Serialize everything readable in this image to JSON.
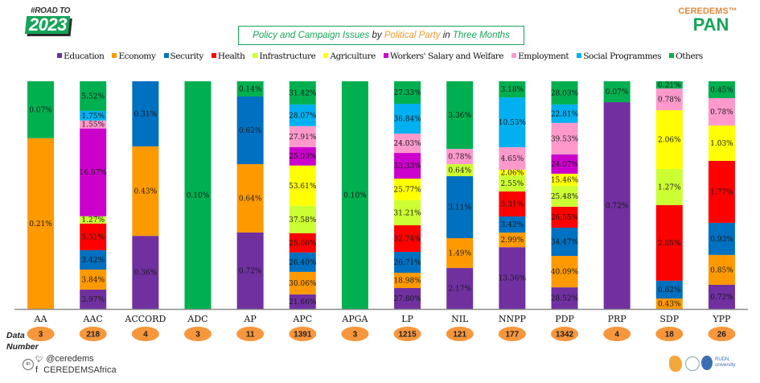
{
  "header": {
    "logo_left_tag": "#ROAD TO",
    "logo_left_year": "2023",
    "logo_right_brand": "CEREDEMS™",
    "logo_right_product": "PAN",
    "title_parts": [
      {
        "text": "Policy and Campaign Issues",
        "style": "green"
      },
      {
        "text": " by ",
        "style": "black"
      },
      {
        "text": "Political Party",
        "style": "orange"
      },
      {
        "text": " in ",
        "style": "black"
      },
      {
        "text": "Three  Months",
        "style": "green"
      }
    ]
  },
  "footer": {
    "data_number_label_line1": "Data",
    "data_number_label_line2": "Number",
    "twitter": "@ceredems",
    "facebook": "CEREDEMSAfrica",
    "linkedin_icon": "in",
    "twitter_icon": "♥",
    "facebook_icon": "f",
    "partner_text": "RUDN university"
  },
  "chart_data": {
    "type": "bar",
    "stacked": "100%",
    "title": "Policy and Campaign Issues by Political Party in Three Months",
    "xlabel": "",
    "ylabel": "",
    "ylim": [
      0,
      100
    ],
    "grid": false,
    "legend_position": "top",
    "categories": [
      "AA",
      "AAC",
      "ACCORD",
      "ADC",
      "AP",
      "APC",
      "APGA",
      "LP",
      "NIL",
      "NNPP",
      "PDP",
      "PRP",
      "SDP",
      "YPP"
    ],
    "data_numbers": [
      3,
      218,
      4,
      3,
      11,
      1391,
      3,
      1215,
      121,
      177,
      1342,
      4,
      18,
      26
    ],
    "colors": {
      "Education": "#7030a0",
      "Economy": "#ff9900",
      "Security": "#0070c0",
      "Health": "#ff0000",
      "Infrastructure": "#ccff33",
      "Agriculture": "#ffff00",
      "Workers' Salary and Welfare": "#cc00cc",
      "Employment": "#ff99cc",
      "Social Programmes": "#00b0f0",
      "Others": "#00b050"
    },
    "count_bubble_color": "#f7963b",
    "legend": [
      "Education",
      "Economy",
      "Security",
      "Health",
      "Infrastructure",
      "Agriculture",
      "Workers' Salary and Welfare",
      "Employment",
      "Social Programmes",
      "Others"
    ],
    "note": "share = within-party share (%) shown by segment height; label = printed data label (%)",
    "series": [
      {
        "name": "Education",
        "share": [
          0,
          8.5,
          32.1,
          0,
          33.6,
          6.4,
          0,
          9.2,
          18.0,
          27.2,
          9.5,
          90.8,
          0,
          10.6
        ],
        "labels": [
          null,
          "3.97%",
          "0.36%",
          null,
          "0.72%",
          "21.66%",
          null,
          "27.80%",
          "2.17%",
          "13.36%",
          "28.52%",
          "0.72%",
          null,
          "0.72%"
        ]
      },
      {
        "name": "Economy",
        "share": [
          75.0,
          8.8,
          39.3,
          0,
          30.0,
          9.9,
          0,
          6.7,
          13.1,
          6.4,
          13.8,
          0,
          4.6,
          13.1
        ],
        "labels": [
          "0.21%",
          "3.84%",
          "0.43%",
          null,
          "0.64%",
          "30.06%",
          null,
          "18.98%",
          "1.49%",
          "2.99%",
          "40.09%",
          null,
          "0.43%",
          "0.85%"
        ]
      },
      {
        "name": "Security",
        "share": [
          0,
          8.5,
          28.6,
          0,
          29.7,
          8.5,
          0,
          9.2,
          27.2,
          7.1,
          12.4,
          0,
          7.8,
          14.1
        ],
        "labels": [
          null,
          "3.42%",
          "0.31%",
          null,
          "0.62%",
          "26.40%",
          null,
          "26.71%",
          "3.11%",
          "3.42%",
          "34.47%",
          null,
          "0.62%",
          "0.93%"
        ]
      },
      {
        "name": "Health",
        "share": [
          0,
          11.7,
          0,
          0,
          0,
          8.5,
          0,
          11.7,
          0,
          11.0,
          9.2,
          0,
          33.2,
          27.2
        ],
        "labels": [
          null,
          "5.31%",
          null,
          null,
          null,
          "25.66%",
          null,
          "32.74%",
          null,
          "5.31%",
          "26.55%",
          null,
          "2.65%",
          "1.77%"
        ]
      },
      {
        "name": "Infrastructure",
        "share": [
          0,
          3.2,
          0,
          0,
          0,
          12.0,
          0,
          11.0,
          5.3,
          7.1,
          9.2,
          0,
          15.9,
          0
        ],
        "labels": [
          null,
          "1.27%",
          null,
          null,
          null,
          "37.58%",
          null,
          "31.21%",
          "0.64%",
          "2.55%",
          "25.48%",
          null,
          "1.27%",
          null
        ]
      },
      {
        "name": "Agriculture",
        "share": [
          0,
          0,
          0,
          0,
          0,
          17.7,
          0,
          9.5,
          0,
          2.5,
          5.3,
          0,
          25.8,
          15.5
        ],
        "labels": [
          null,
          null,
          null,
          null,
          null,
          "53.61%",
          null,
          "25.77%",
          null,
          "2.06%",
          "15.46%",
          null,
          "2.06%",
          "1.03%"
        ]
      },
      {
        "name": "Workers' Salary and Welfare",
        "share": [
          0,
          38.5,
          0,
          0,
          0,
          8.1,
          0,
          11.3,
          0,
          0,
          8.5,
          0,
          0,
          0
        ],
        "labels": [
          null,
          "16.67%",
          null,
          null,
          null,
          "25.93%",
          null,
          "33.33%",
          null,
          null,
          "24.07%",
          null,
          null,
          null
        ]
      },
      {
        "name": "Employment",
        "share": [
          0,
          3.5,
          0,
          0,
          0,
          9.2,
          0,
          8.5,
          6.7,
          9.9,
          13.8,
          0,
          9.5,
          12.0
        ],
        "labels": [
          null,
          "1.55%",
          null,
          null,
          null,
          "27.91%",
          null,
          "24.03%",
          "0.78%",
          "4.65%",
          "39.53%",
          null,
          "0.78%",
          "0.78%"
        ]
      },
      {
        "name": "Social Programmes",
        "share": [
          0,
          4.2,
          0,
          0,
          0,
          9.5,
          0,
          13.1,
          0,
          21.9,
          8.1,
          0,
          0,
          0
        ],
        "labels": [
          null,
          "1.75%",
          null,
          null,
          null,
          "28.07%",
          null,
          "36.84%",
          null,
          "10.53%",
          "22.81%",
          null,
          null,
          null
        ]
      },
      {
        "name": "Others",
        "share": [
          25.0,
          13.0,
          0,
          100,
          6.7,
          10.2,
          100,
          9.9,
          29.7,
          7.1,
          10.2,
          9.2,
          3.2,
          7.4
        ],
        "labels": [
          "0.07%",
          "5.52%",
          null,
          "0.10%",
          "0.14%",
          "31.42%",
          "0.10%",
          "27.33%",
          "3.36%",
          "3.18%",
          "28.03%",
          "0.07%",
          "0.21%",
          "0.45%"
        ]
      }
    ]
  }
}
